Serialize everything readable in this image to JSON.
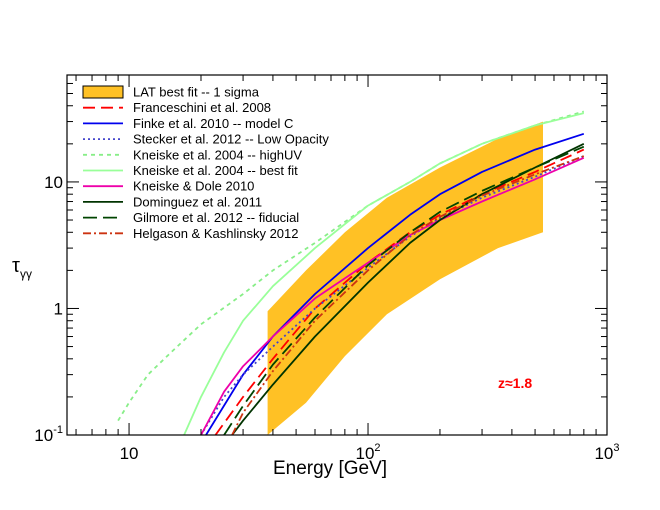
{
  "chart_data": {
    "type": "line",
    "xlabel": "Energy [GeV]",
    "ylabel": "τ",
    "ylabel_sub": "γγ",
    "x_scale": "log",
    "y_scale": "log",
    "xlim": [
      5.5,
      1000
    ],
    "ylim": [
      0.1,
      70
    ],
    "x_ticks": [
      {
        "base": "10",
        "exp": ""
      },
      {
        "base": "10",
        "exp": "2"
      },
      {
        "base": "10",
        "exp": "3"
      }
    ],
    "y_ticks": [
      {
        "base": "10",
        "exp": "-1",
        "value": 0.1
      },
      {
        "base": "1",
        "exp": "",
        "value": 1
      },
      {
        "base": "10",
        "exp": "",
        "value": 10
      }
    ],
    "legend_position": "top-left",
    "annotation": {
      "text": "z≈1.8",
      "color": "#ff0000"
    },
    "band": {
      "name": "LAT best fit -- 1 sigma",
      "color": "#ffc125",
      "edge_color": "#000000",
      "x": [
        38,
        55,
        80,
        120,
        200,
        350,
        540
      ],
      "lower": [
        0.1,
        0.18,
        0.42,
        0.9,
        1.7,
        3.0,
        4.0
      ],
      "upper": [
        0.95,
        2.0,
        4.0,
        7.5,
        13,
        22,
        30
      ]
    },
    "series": [
      {
        "name": "Franceschini et al. 2008",
        "color": "#ff0000",
        "dash": "dash",
        "x": [
          23,
          30,
          40,
          60,
          100,
          150,
          200,
          300,
          500,
          800
        ],
        "y": [
          0.1,
          0.2,
          0.4,
          1.0,
          2.3,
          4.0,
          5.5,
          8.0,
          12,
          18
        ]
      },
      {
        "name": "Finke et al. 2010 -- model C",
        "color": "#0000ee",
        "dash": "solid",
        "x": [
          21,
          30,
          40,
          60,
          100,
          150,
          200,
          300,
          500,
          800
        ],
        "y": [
          0.1,
          0.3,
          0.6,
          1.3,
          3.0,
          5.5,
          8.0,
          12,
          18,
          24
        ]
      },
      {
        "name": "Stecker et al. 2012 -- Low Opacity",
        "color": "#4444cc",
        "dash": "dot",
        "x": [
          20,
          25,
          30,
          40,
          60,
          100,
          150,
          200,
          300,
          500,
          800
        ],
        "y": [
          0.1,
          0.2,
          0.3,
          0.5,
          1.0,
          2.1,
          3.7,
          5.2,
          7.5,
          11,
          16
        ]
      },
      {
        "name": "Kneiske et al. 2004 -- highUV",
        "color": "#88ee88",
        "dash": "shortdash",
        "x": [
          9,
          10,
          12,
          15,
          20,
          30,
          40,
          60,
          100,
          150,
          200,
          300,
          500,
          800
        ],
        "y": [
          0.13,
          0.18,
          0.3,
          0.45,
          0.75,
          1.3,
          2.0,
          3.3,
          6.5,
          10,
          14,
          20,
          28,
          36
        ]
      },
      {
        "name": "Kneiske et al. 2004 -- best fit",
        "color": "#99ff99",
        "dash": "solid",
        "x": [
          17,
          20,
          25,
          30,
          40,
          60,
          100,
          150,
          200,
          300,
          500,
          800
        ],
        "y": [
          0.1,
          0.2,
          0.45,
          0.8,
          1.5,
          3.0,
          6.5,
          10,
          14,
          20,
          28,
          35
        ]
      },
      {
        "name": "Kneiske & Dole 2010",
        "color": "#ee00aa",
        "dash": "solid",
        "x": [
          20,
          25,
          30,
          40,
          60,
          100,
          150,
          200,
          300,
          500,
          800
        ],
        "y": [
          0.1,
          0.22,
          0.35,
          0.6,
          1.2,
          2.3,
          3.8,
          5.0,
          7.0,
          10.5,
          15.5
        ]
      },
      {
        "name": "Dominguez et al. 2011",
        "color": "#003300",
        "dash": "solid",
        "x": [
          27,
          30,
          40,
          60,
          100,
          150,
          200,
          300,
          500,
          800
        ],
        "y": [
          0.1,
          0.13,
          0.25,
          0.6,
          1.6,
          3.3,
          5.0,
          8.0,
          13,
          20
        ]
      },
      {
        "name": "Gilmore et al. 2012 -- fiducial",
        "color": "#004400",
        "dash": "longdash",
        "x": [
          25,
          30,
          40,
          60,
          100,
          150,
          200,
          300,
          500,
          800
        ],
        "y": [
          0.1,
          0.17,
          0.36,
          0.85,
          2.2,
          4.0,
          5.8,
          8.5,
          13,
          19
        ]
      },
      {
        "name": "Helgason & Kashlinsky 2012",
        "color": "#cc3311",
        "dash": "dashdot",
        "x": [
          27,
          30,
          40,
          60,
          100,
          150,
          200,
          300,
          500,
          800
        ],
        "y": [
          0.1,
          0.15,
          0.32,
          0.8,
          2.0,
          3.8,
          5.3,
          7.8,
          11.5,
          16
        ]
      }
    ]
  }
}
